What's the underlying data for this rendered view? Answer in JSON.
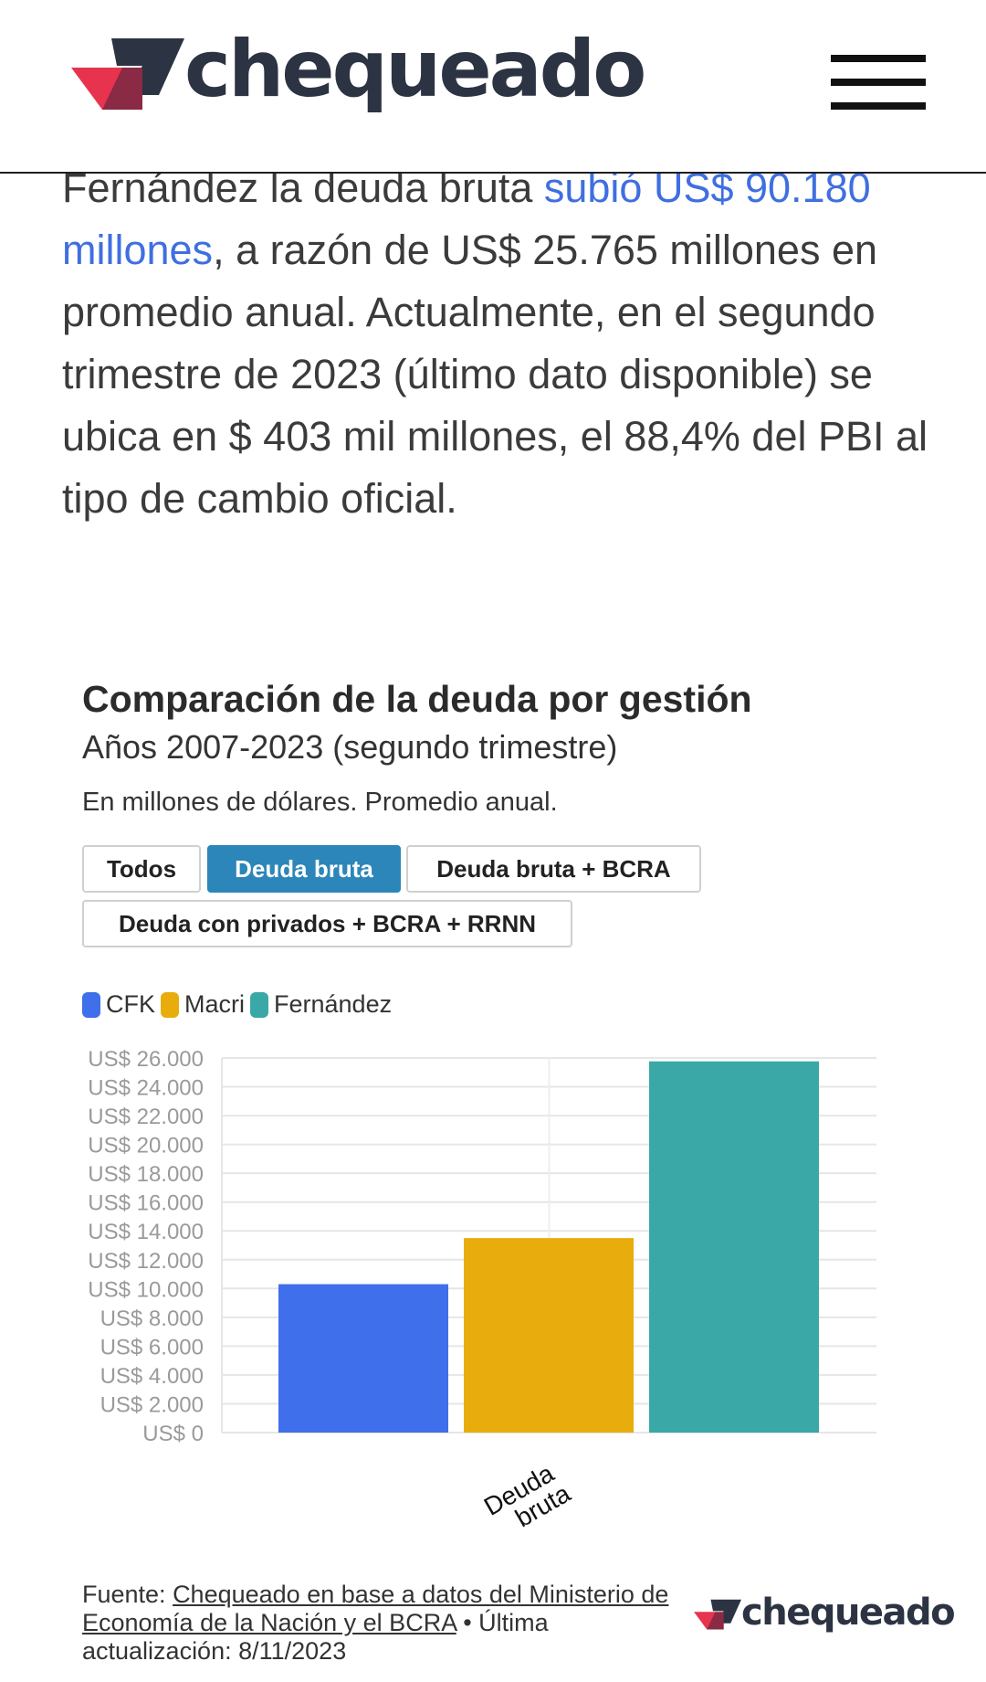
{
  "header": {
    "logo_text": "chequeado",
    "menu_icon": "hamburger-menu-icon"
  },
  "article": {
    "text_before_link": "Fernández la deuda bruta ",
    "link_text": "subió US$ 90.180 millones",
    "text_after_link": ", a razón de US$ 25.765 millones en promedio anual. Actualmente, en el segundo trimestre de 2023 (último dato disponible) se ubica en $ 403 mil millones, el 88,4% del PBI al tipo de cambio oficial."
  },
  "widget": {
    "title": "Comparación de la deuda por gestión",
    "subtitle": "Años 2007-2023 (segundo trimestre)",
    "description": "En millones de dólares. Promedio anual.",
    "tabs": [
      "Todos",
      "Deuda bruta",
      "Deuda bruta + BCRA",
      "Deuda con privados + BCRA + RRNN"
    ],
    "active_tab": "Deuda bruta"
  },
  "colors": {
    "cfk": "#3f6fea",
    "macri": "#e8ad0c",
    "fernandez": "#3aa8a6",
    "accent": "#2c86b9",
    "link": "#3f6fe0"
  },
  "chart_data": {
    "type": "bar",
    "categories": [
      "Deuda bruta"
    ],
    "series": [
      {
        "name": "CFK",
        "values": [
          10300
        ]
      },
      {
        "name": "Macri",
        "values": [
          13500
        ]
      },
      {
        "name": "Fernández",
        "values": [
          25765
        ]
      }
    ],
    "ylim": [
      0,
      26000
    ],
    "yticks": [
      "US$ 0",
      "US$ 2.000",
      "US$ 4.000",
      "US$ 6.000",
      "US$ 8.000",
      "US$ 10.000",
      "US$ 12.000",
      "US$ 14.000",
      "US$ 16.000",
      "US$ 18.000",
      "US$ 20.000",
      "US$ 22.000",
      "US$ 24.000",
      "US$ 26.000"
    ],
    "grid": true,
    "legend": "top-left"
  },
  "footer": {
    "source_label": "Fuente: ",
    "source_link": "Chequeado en base a datos del Ministerio de Economía de la Nación y el BCRA",
    "update_text": " • Última actualización: 8/11/2023",
    "logo_text": "chequeado"
  }
}
